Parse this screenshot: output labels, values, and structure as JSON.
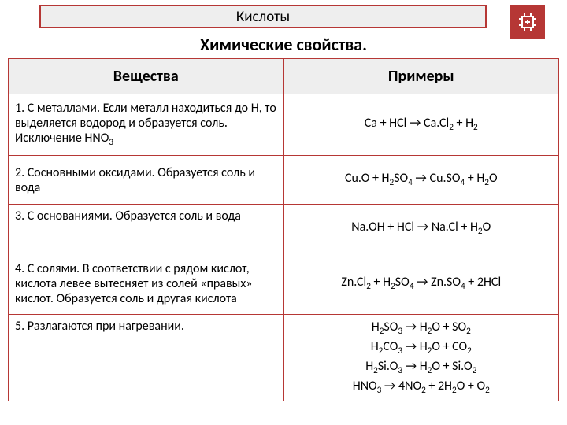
{
  "theme": {
    "accent": "#b63735",
    "header_bg": "#eeeeee",
    "text": "#000000",
    "page_bg": "#ffffff"
  },
  "title": "Кислоты",
  "subtitle": "Химические свойства.",
  "columns": {
    "left": "Вещества",
    "right": "Примеры"
  },
  "rows": [
    {
      "left": "1. С металлами. Если металл находиться до H, то выделяется водород и образуется соль. Исключение HNO",
      "left_sub": "3",
      "right_html": "Ca + HCl → Ca.Cl<sub>2</sub> + H<sub>2</sub>"
    },
    {
      "left": "2. Сосновными оксидами. Образуется соль и вода",
      "right_html": "Cu.O + H<sub>2</sub>SO<sub>4</sub> → Cu.SO<sub>4</sub> + H<sub>2</sub>O"
    },
    {
      "left": "3. С основаниями. Образуется соль и вода",
      "right_html": "Na.OH + HCl → Na.Cl + H<sub>2</sub>O"
    },
    {
      "left": "4. С солями. В соответствии с рядом кислот, кислота левее вытесняет из солей «правых» кислот. Образуется соль и другая кислота",
      "right_html": "Zn.Cl<sub>2</sub> + H<sub>2</sub>SO<sub>4</sub> → Zn.SO<sub>4</sub> + 2HCl"
    },
    {
      "left": "5. Разлагаются при нагревании.",
      "right_html": "H<sub>2</sub>SO<sub>3</sub> → H<sub>2</sub>O + SO<sub>2</sub><br>H<sub>2</sub>CO<sub>3</sub> → H<sub>2</sub>O + CO<sub>2</sub><br>H<sub>2</sub>Si.O<sub>3</sub> → H<sub>2</sub>O + Si.O<sub>2</sub><br>HNO<sub>3</sub> → 4NO<sub>2</sub> + 2H<sub>2</sub>O + O<sub>2</sub>"
    }
  ]
}
